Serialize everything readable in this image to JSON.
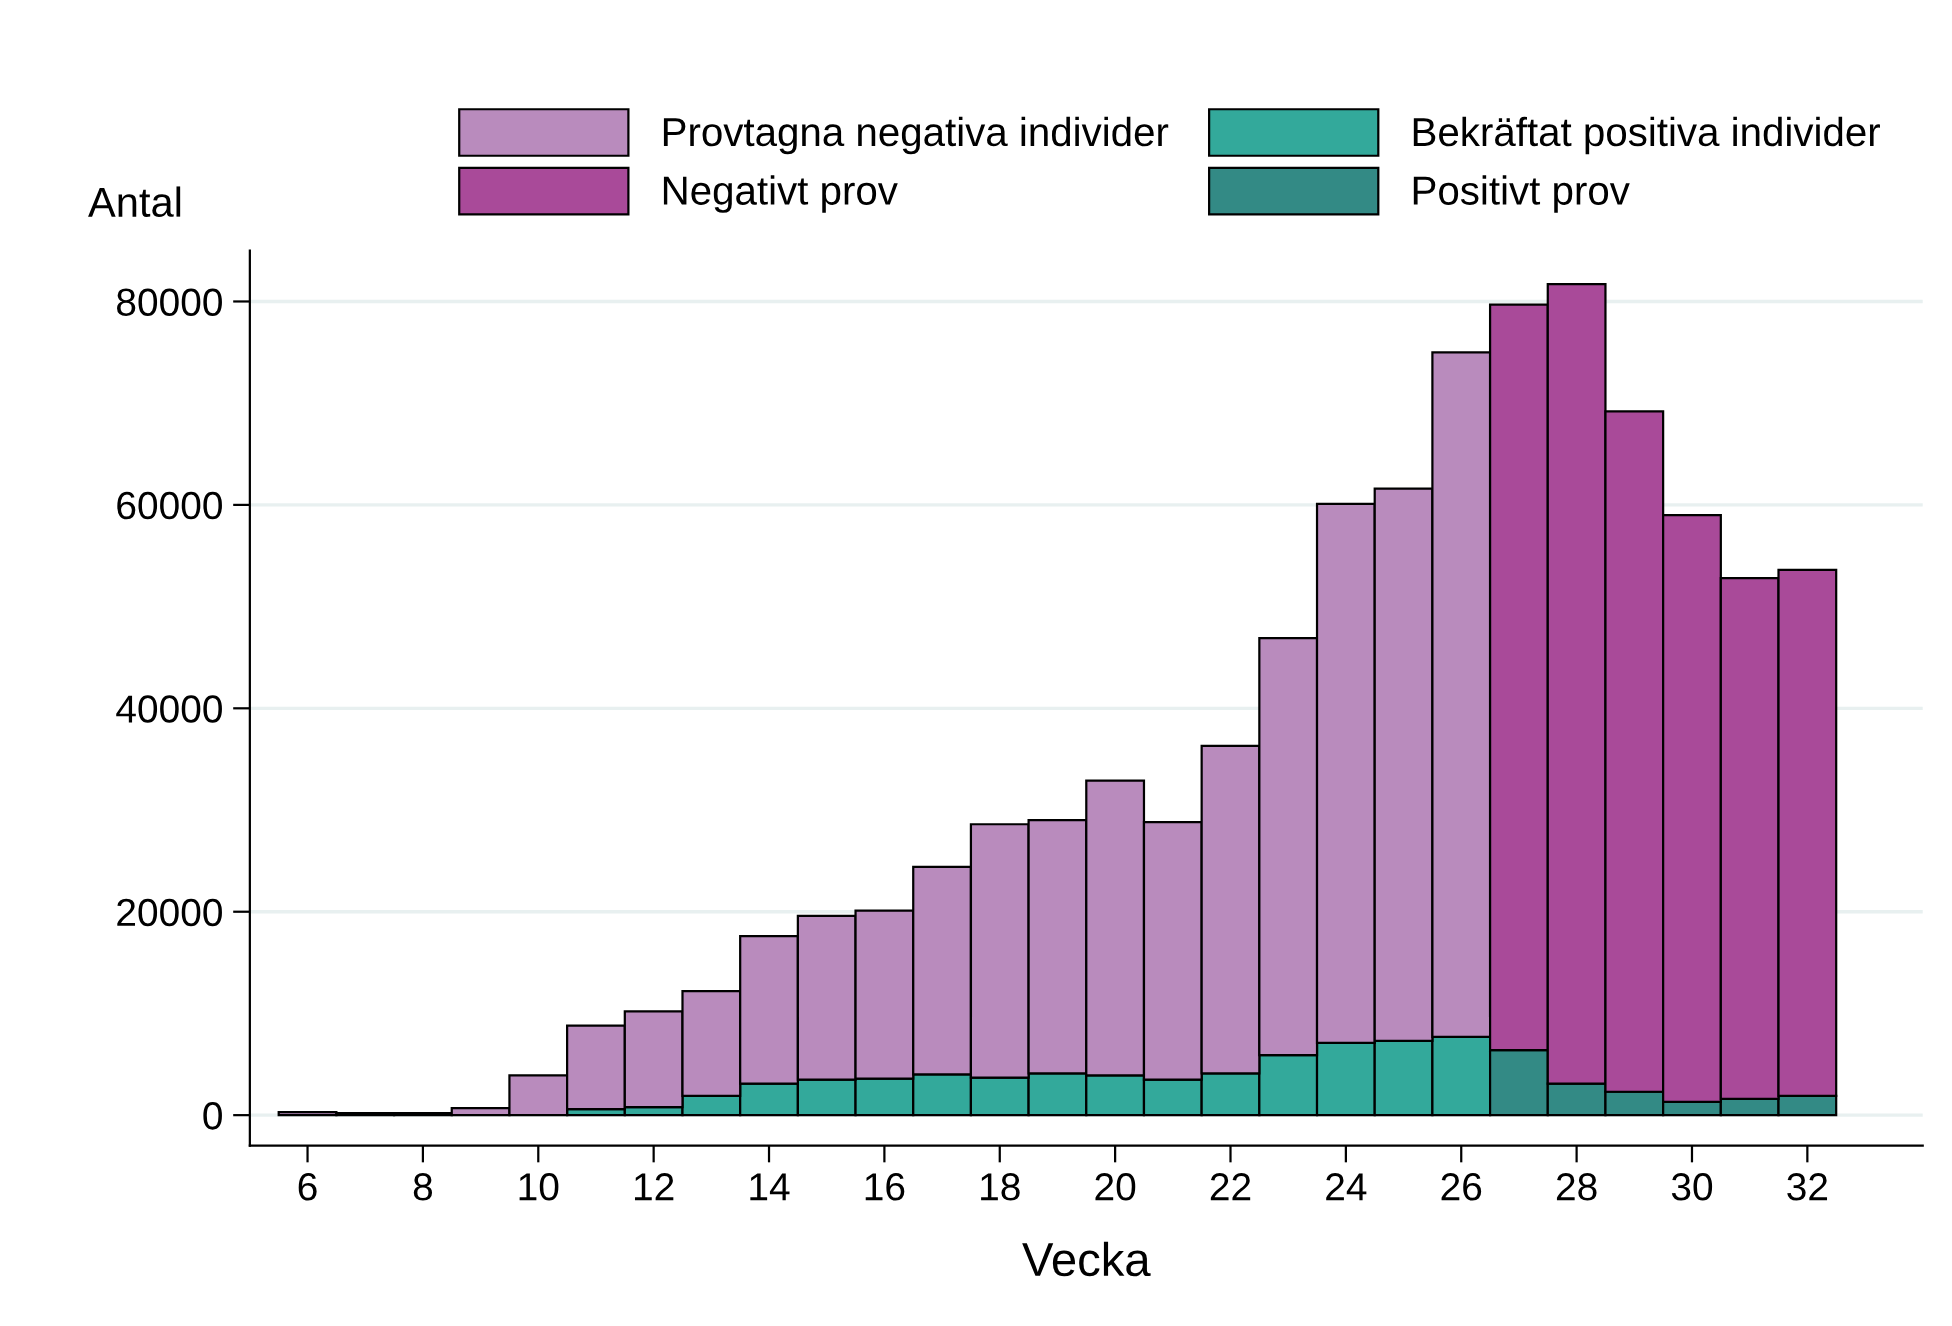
{
  "chart_data": {
    "type": "bar",
    "stacked": true,
    "xlabel": "Vecka",
    "ylabel": "Antal",
    "x": [
      6,
      7,
      8,
      9,
      10,
      11,
      12,
      13,
      14,
      15,
      16,
      17,
      18,
      19,
      20,
      21,
      22,
      23,
      24,
      25,
      26,
      27,
      28,
      29,
      30,
      31,
      32
    ],
    "series": [
      {
        "name": "Bekräftat positiva individer",
        "color": "#33a99b",
        "values": [
          null,
          null,
          null,
          null,
          null,
          600,
          800,
          1900,
          3100,
          3500,
          3600,
          4000,
          3700,
          4100,
          3900,
          3500,
          4100,
          5900,
          7100,
          7300,
          7700,
          null,
          null,
          null,
          null,
          null,
          null
        ]
      },
      {
        "name": "Positivt prov",
        "color": "#338a85",
        "values": [
          null,
          null,
          null,
          null,
          null,
          null,
          null,
          null,
          null,
          null,
          null,
          null,
          null,
          null,
          null,
          null,
          null,
          null,
          null,
          null,
          null,
          6400,
          3100,
          2300,
          1300,
          1600,
          1900
        ]
      },
      {
        "name": "Provtagna negativa individer",
        "color": "#b98bbd",
        "values": [
          300,
          200,
          200,
          700,
          3900,
          8200,
          9400,
          10300,
          14500,
          16100,
          16500,
          20400,
          24900,
          24900,
          29000,
          25300,
          32200,
          41000,
          53000,
          54300,
          67300,
          null,
          null,
          null,
          null,
          null,
          null
        ]
      },
      {
        "name": "Negativt prov",
        "color": "#a94a99",
        "values": [
          null,
          null,
          null,
          null,
          null,
          null,
          null,
          null,
          null,
          null,
          null,
          null,
          null,
          null,
          null,
          null,
          null,
          null,
          null,
          null,
          null,
          73300,
          78600,
          66900,
          57700,
          51200,
          51700
        ]
      }
    ],
    "xlim": [
      5,
      34
    ],
    "xticks": [
      6,
      8,
      10,
      12,
      14,
      16,
      18,
      20,
      22,
      24,
      26,
      28,
      30,
      32
    ],
    "ylim": [
      -3000,
      85000
    ],
    "yticks": [
      0,
      20000,
      40000,
      60000,
      80000
    ],
    "grid": "y",
    "legend": "top"
  }
}
